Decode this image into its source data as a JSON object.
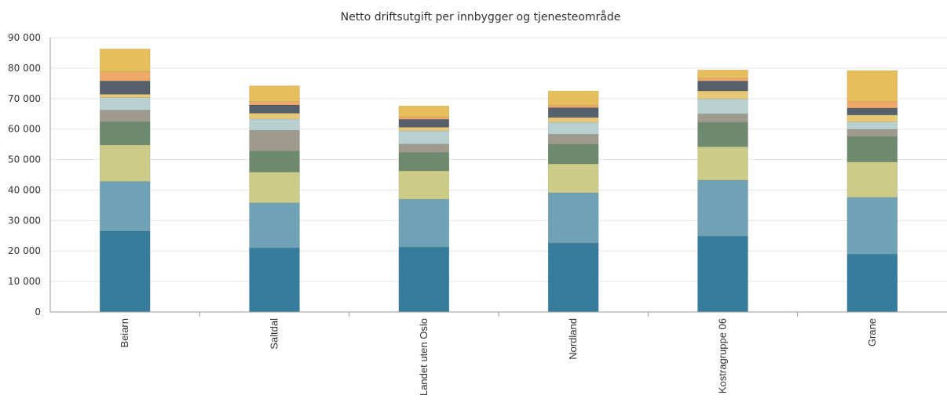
{
  "chart_data": {
    "type": "bar",
    "stacked": true,
    "title": "Netto driftsutgift per innbygger og tjenesteområde",
    "xlabel": "",
    "ylabel": "",
    "ylim": [
      0,
      90000
    ],
    "y_ticks": [
      0,
      10000,
      20000,
      30000,
      40000,
      50000,
      60000,
      70000,
      80000,
      90000
    ],
    "y_tick_labels": [
      "0",
      "10 000",
      "20 000",
      "30 000",
      "40 000",
      "50 000",
      "60 000",
      "70 000",
      "80 000",
      "90 000"
    ],
    "grid": true,
    "legend": "none",
    "categories": [
      "Beiarn",
      "Saltdal",
      "Landet uten Oslo",
      "Nordland",
      "Kostragruppe 06",
      "Grane"
    ],
    "series": [
      {
        "color": "#367c9c",
        "values": [
          26500,
          21000,
          21300,
          22600,
          24800,
          18900
        ]
      },
      {
        "color": "#6fa2b5",
        "values": [
          16300,
          14800,
          15700,
          16500,
          18400,
          18700
        ]
      },
      {
        "color": "#cccc88",
        "values": [
          12000,
          10100,
          9300,
          9500,
          11000,
          11600
        ]
      },
      {
        "color": "#6e8a6e",
        "values": [
          7600,
          6900,
          6000,
          6400,
          8000,
          8300
        ]
      },
      {
        "color": "#9e9a8e",
        "values": [
          3800,
          6800,
          2800,
          3300,
          2800,
          2400
        ]
      },
      {
        "color": "#b8d0d0",
        "values": [
          4100,
          3700,
          4300,
          3900,
          4900,
          2400
        ]
      },
      {
        "color": "#e6c878",
        "values": [
          1100,
          1900,
          1200,
          1600,
          2600,
          2300
        ]
      },
      {
        "color": "#56606a",
        "values": [
          4400,
          2700,
          2600,
          3200,
          3300,
          2300
        ]
      },
      {
        "color": "#f0a868",
        "values": [
          3000,
          1100,
          800,
          800,
          900,
          2100
        ]
      },
      {
        "color": "#e6bf5c",
        "values": [
          7500,
          5200,
          3600,
          4700,
          2700,
          10200
        ]
      }
    ]
  }
}
